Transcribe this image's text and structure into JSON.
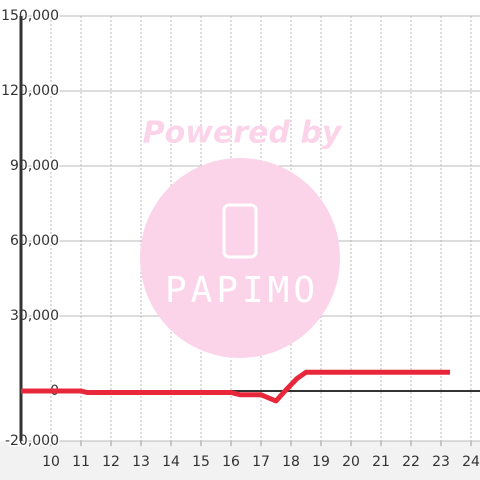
{
  "chart_data": {
    "type": "line",
    "x": [
      9,
      11,
      11.2,
      16,
      16.3,
      17,
      17.5,
      17.8,
      18.2,
      18.5,
      23.3
    ],
    "values": [
      0,
      0,
      -600,
      -600,
      -1500,
      -1500,
      -4000,
      0,
      5000,
      7500,
      7500
    ],
    "color": "#e8283a",
    "xlim": [
      9,
      24.3
    ],
    "xticks": [
      10,
      11,
      12,
      13,
      14,
      15,
      16,
      17,
      18,
      19,
      20,
      21,
      22,
      23,
      24
    ],
    "ylim": [
      -20000,
      150000
    ],
    "yticks": [
      {
        "value": -20000,
        "label": "-20,000"
      },
      0,
      {
        "value": 30000,
        "label": "30,000"
      },
      {
        "value": 60000,
        "label": "60,000"
      },
      {
        "value": 90000,
        "label": "90,000"
      },
      {
        "value": 120000,
        "label": "120,000"
      },
      {
        "value": 150000,
        "label": "150,000"
      }
    ],
    "grid": true,
    "watermark": {
      "top": "Powered by",
      "logo": "PAPIMO"
    }
  }
}
